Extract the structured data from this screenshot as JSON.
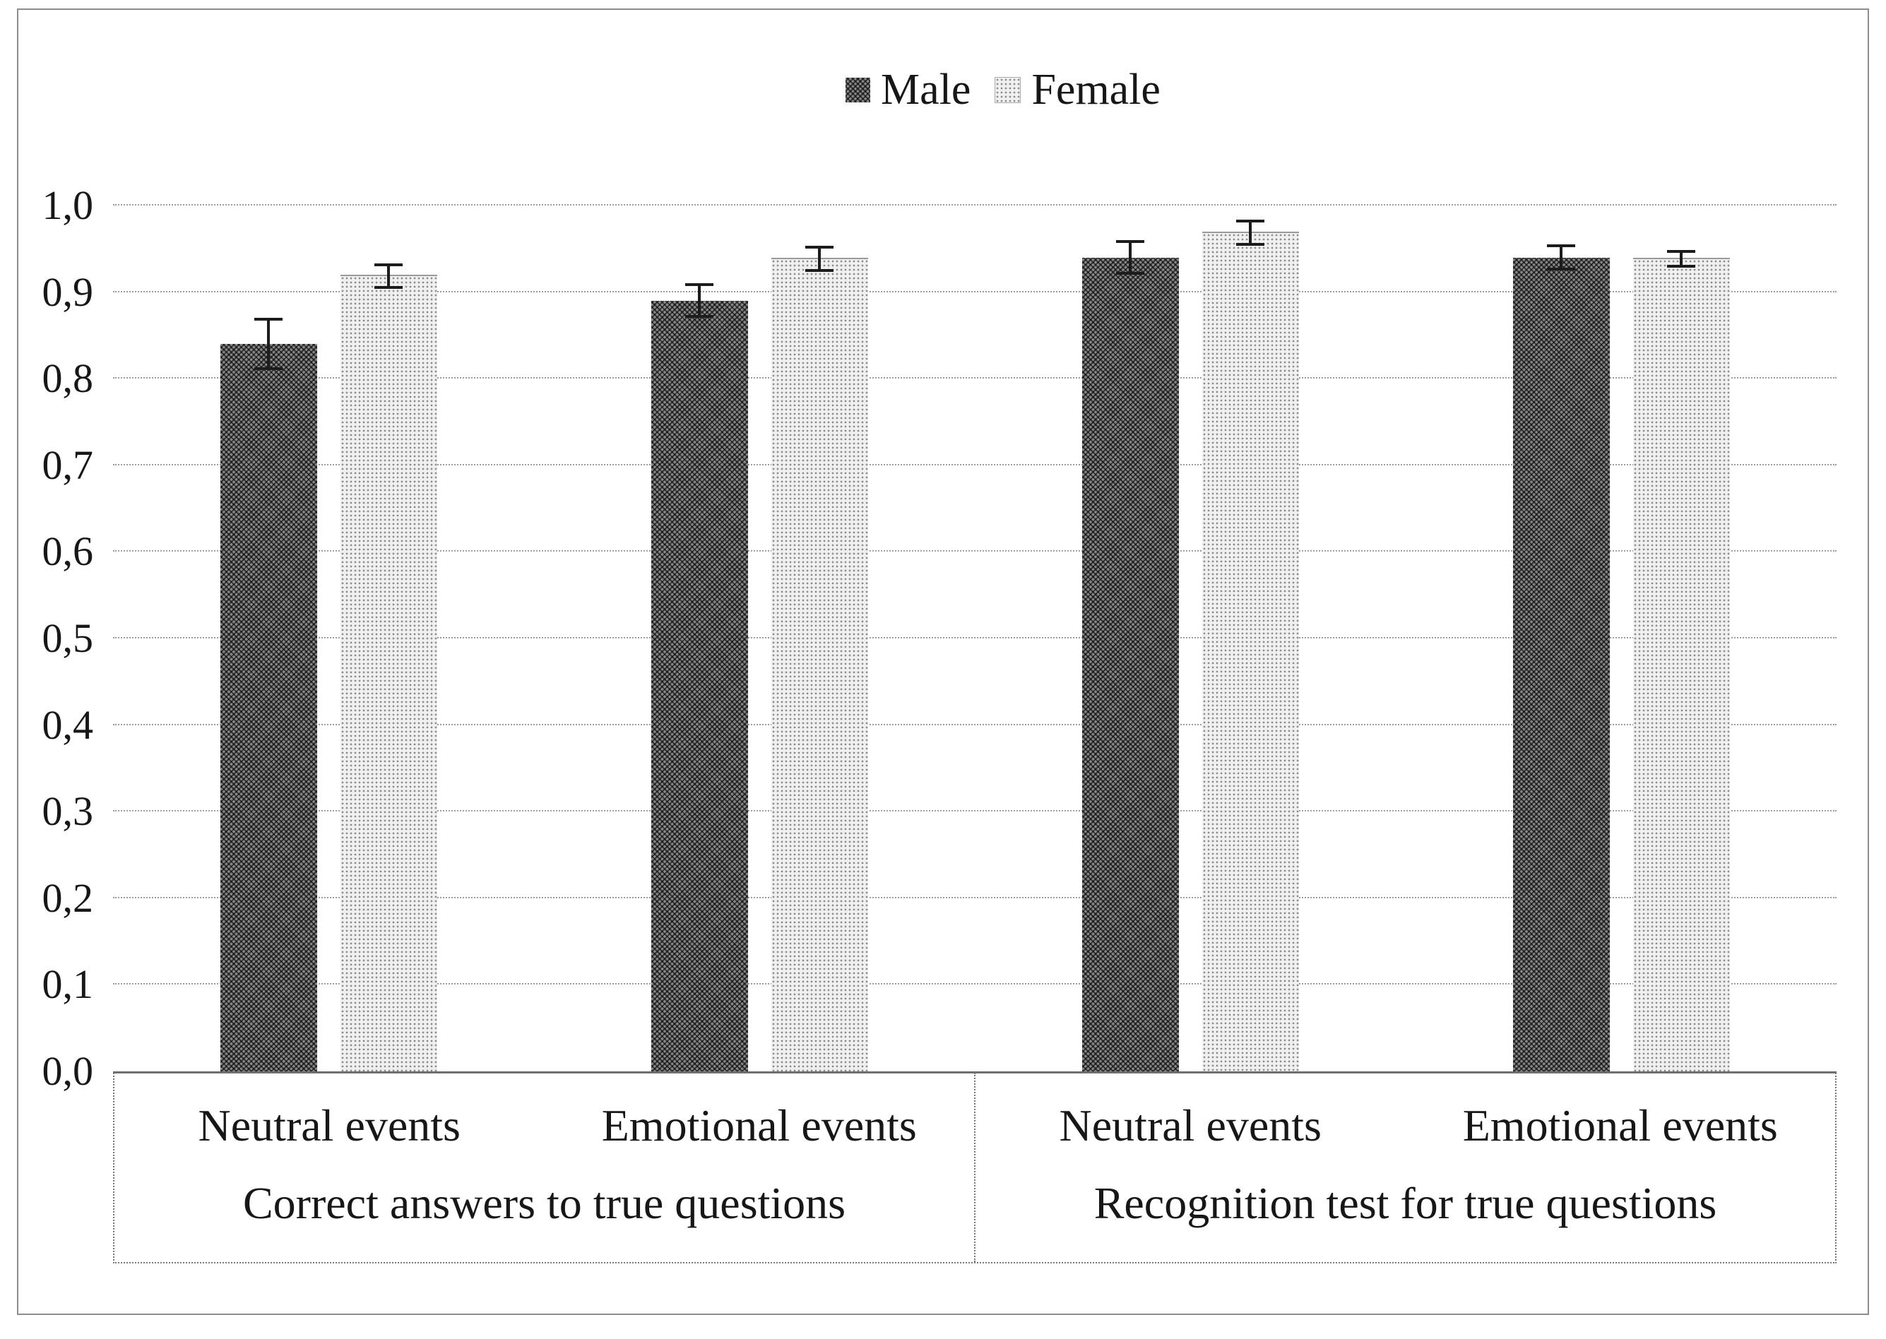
{
  "chart_data": {
    "type": "bar",
    "title": "",
    "legend": [
      "Male",
      "Female"
    ],
    "legend_position": "top-center",
    "series": [
      {
        "name": "Male",
        "values": [
          0.84,
          0.89,
          0.94,
          0.94
        ],
        "errors": [
          0.03,
          0.02,
          0.02,
          0.015
        ],
        "color": "#5f5f5f",
        "pattern": "dark-crosshatch"
      },
      {
        "name": "Female",
        "values": [
          0.92,
          0.94,
          0.97,
          0.94
        ],
        "errors": [
          0.015,
          0.015,
          0.015,
          0.01
        ],
        "color": "#d9d9d9",
        "pattern": "light-dots"
      }
    ],
    "categories": [
      "Neutral events",
      "Emotional events",
      "Neutral events",
      "Emotional events"
    ],
    "category_groups": [
      {
        "label": "Correct answers to true questions",
        "span": [
          0,
          1
        ]
      },
      {
        "label": "Recognition test for true questions",
        "span": [
          2,
          3
        ]
      }
    ],
    "ylim": [
      0.0,
      1.0
    ],
    "yticks": [
      0.0,
      0.1,
      0.2,
      0.3,
      0.4,
      0.5,
      0.6,
      0.7,
      0.8,
      0.9,
      1.0
    ],
    "ytick_labels": [
      "0,0",
      "0,1",
      "0,2",
      "0,3",
      "0,4",
      "0,5",
      "0,6",
      "0,7",
      "0,8",
      "0,9",
      "1,0"
    ],
    "xlabel": "",
    "ylabel": "",
    "grid": "horizontal-dotted",
    "error_bars": true,
    "colors": {
      "grid": "#9b9b9b",
      "axis": "#6e6e6e",
      "error_bar": "#1c1c1c",
      "text": "#171717",
      "background": "#ffffff",
      "figure_border": "#8d8d8d"
    }
  }
}
